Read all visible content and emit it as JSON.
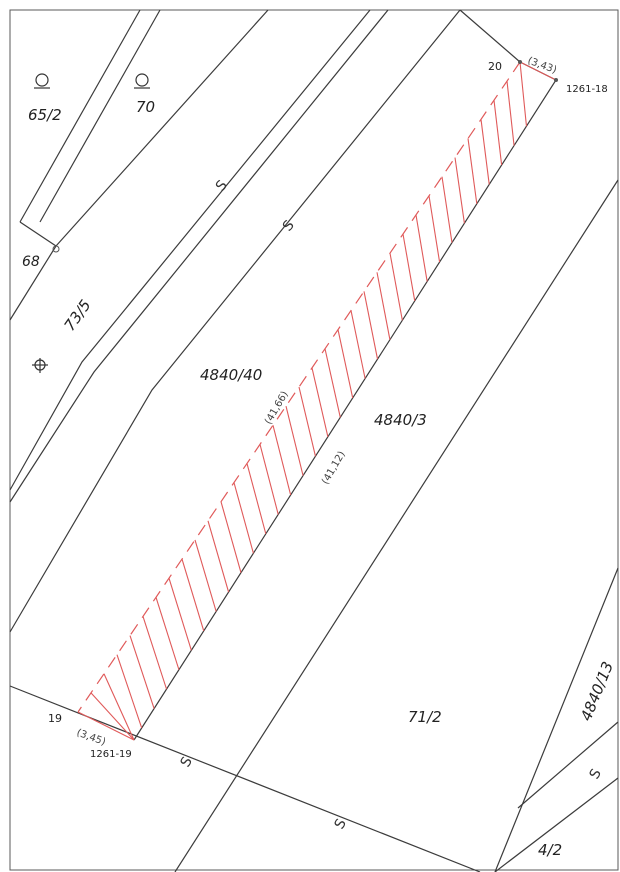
{
  "parcels": [
    {
      "id": "p-65-2",
      "label": "65/2"
    },
    {
      "id": "p-70",
      "label": "70"
    },
    {
      "id": "p-68",
      "label": "68"
    },
    {
      "id": "p-73-5",
      "label": "73/5"
    },
    {
      "id": "p-4840-40",
      "label": "4840/40"
    },
    {
      "id": "p-4840-3",
      "label": "4840/3"
    },
    {
      "id": "p-71-2",
      "label": "71/2"
    },
    {
      "id": "p-4840-13",
      "label": "4840/13"
    },
    {
      "id": "p-4-2",
      "label": "4/2"
    }
  ],
  "points": [
    {
      "id": "pt-20",
      "label": "20"
    },
    {
      "id": "pt-19",
      "label": "19"
    },
    {
      "id": "pt-1261-18",
      "label": "1261-18"
    },
    {
      "id": "pt-1261-19",
      "label": "1261-19"
    }
  ],
  "measurements": [
    {
      "id": "m-top",
      "label": "(3,43)"
    },
    {
      "id": "m-bottom",
      "label": "(3,45)"
    },
    {
      "id": "m-left",
      "label": "(41,66)"
    },
    {
      "id": "m-right",
      "label": "(41,12)"
    }
  ],
  "road_symbol": "S",
  "colors": {
    "lines": "#3c3c3c",
    "hatch": "#e05a5a"
  },
  "icons": [
    "meadow-symbol-icon",
    "meadow-symbol-icon",
    "forest-symbol-icon"
  ]
}
